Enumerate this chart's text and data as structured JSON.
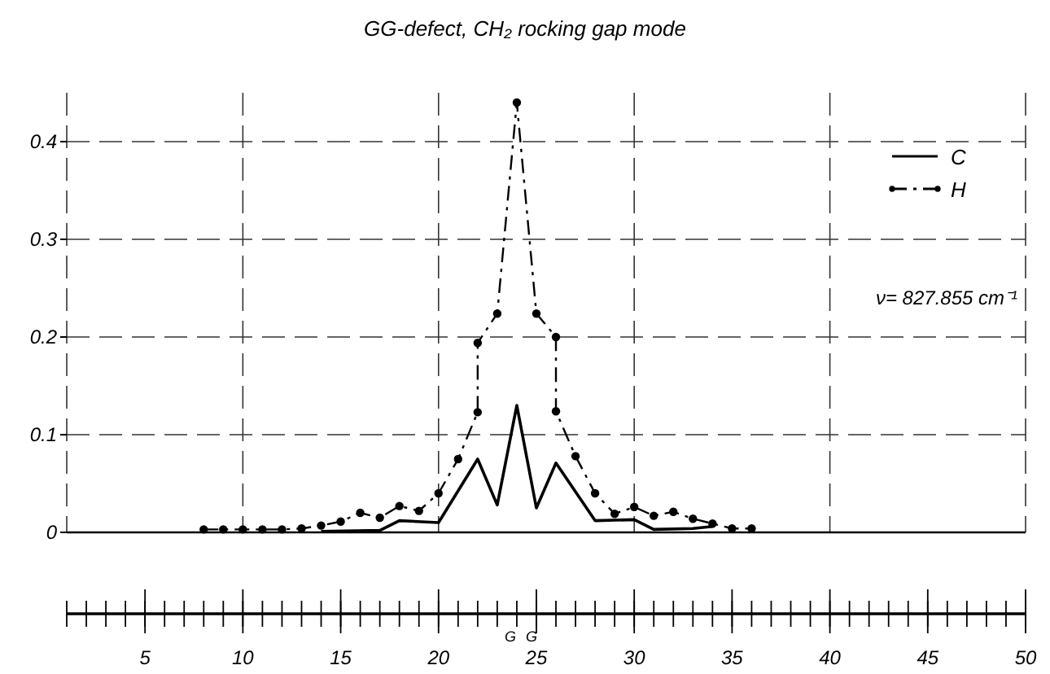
{
  "chart_data": {
    "type": "line",
    "title": "GG-defect, CH₂ rocking gap mode",
    "xlim": [
      1,
      50
    ],
    "xticks": [
      5,
      10,
      15,
      20,
      25,
      30,
      35,
      40,
      45,
      50
    ],
    "ylim": [
      0,
      0.45
    ],
    "yticks": [
      0,
      0.1,
      0.2,
      0.3,
      0.4
    ],
    "grid": true,
    "legend": "top right",
    "series": [
      {
        "name": "C",
        "color": "#000000",
        "marker": "none",
        "line_style": "solid",
        "x": [
          14,
          17,
          18,
          20,
          22,
          23,
          24,
          25,
          26,
          28,
          30,
          31,
          33,
          34
        ],
        "values": [
          0.001,
          0.002,
          0.012,
          0.01,
          0.075,
          0.028,
          0.13,
          0.025,
          0.071,
          0.012,
          0.013,
          0.003,
          0.004,
          0.006
        ]
      },
      {
        "name": "H",
        "color": "#000000",
        "marker": "circle",
        "line_style": "dashed",
        "x": [
          8,
          9,
          10,
          11,
          12,
          13,
          14,
          15,
          16,
          17,
          18,
          19,
          20,
          21,
          22,
          22,
          23,
          24,
          25,
          26,
          26,
          27,
          28,
          29,
          30,
          31,
          32,
          33,
          34,
          35,
          36
        ],
        "values": [
          0.003,
          0.003,
          0.003,
          0.003,
          0.003,
          0.004,
          0.007,
          0.011,
          0.02,
          0.015,
          0.027,
          0.022,
          0.04,
          0.075,
          0.123,
          0.194,
          0.224,
          0.44,
          0.224,
          0.2,
          0.124,
          0.078,
          0.04,
          0.019,
          0.026,
          0.017,
          0.021,
          0.014,
          0.009,
          0.004,
          0.004
        ]
      }
    ],
    "annotations": [
      "ν= 827.855 cm⁻¹",
      "G",
      "G"
    ]
  }
}
